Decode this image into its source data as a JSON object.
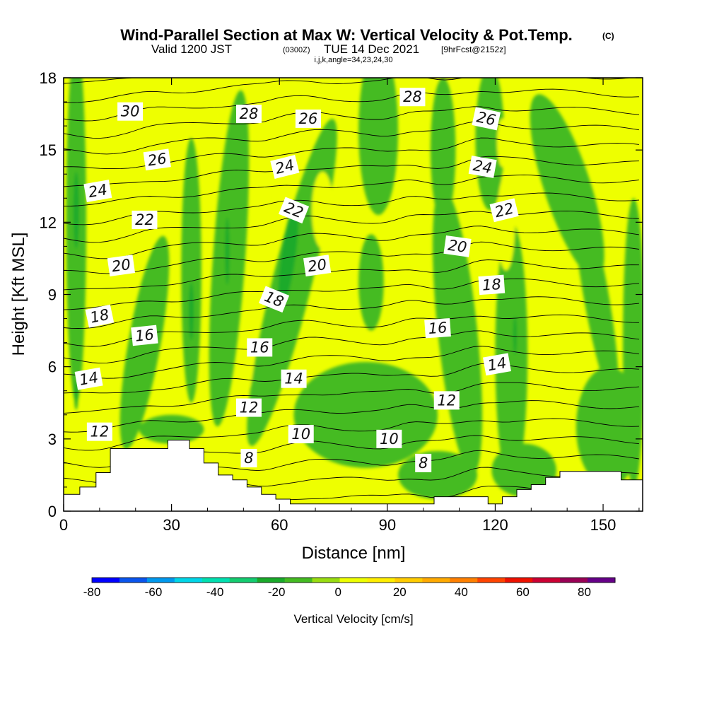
{
  "chart_data": {
    "type": "heatmap",
    "title": "Wind-Parallel Section at Max W: Vertical Velocity & Pot.Temp.",
    "title_mark": "(C)",
    "subtitle_prefix": "Valid 1200 JST",
    "subtitle_utc": "(0300Z)",
    "subtitle_date": "TUE 14 Dec 2021",
    "subtitle_fcst": "[9hrFcst@2152z]",
    "subtitle2": "i,j,k,angle=34,23,24,30",
    "xlabel": "Distance [nm]",
    "ylabel": "Height [Kft MSL]",
    "xlim": [
      0,
      161
    ],
    "ylim": [
      0,
      18
    ],
    "x_ticks": [
      0,
      30,
      60,
      90,
      120,
      150
    ],
    "y_ticks": [
      0,
      3,
      6,
      9,
      12,
      15,
      18
    ],
    "colorbar": {
      "label": "Vertical Velocity [cm/s]",
      "range": [
        -80,
        90
      ],
      "step": 10,
      "tick_values": [
        -80,
        -60,
        -40,
        -20,
        0,
        20,
        40,
        60,
        80
      ],
      "tick_labels": [
        "-80",
        "-60",
        "-40",
        "-20",
        "0",
        "20",
        "40",
        "60",
        "80"
      ],
      "colors": [
        "#0000ff",
        "#0a55ee",
        "#0099ee",
        "#00d6e8",
        "#00e0b0",
        "#14cc70",
        "#1aaa2a",
        "#44bb22",
        "#99dd11",
        "#eeff00",
        "#ffee00",
        "#ffcc00",
        "#ffaa00",
        "#ff8000",
        "#ff4400",
        "#ee1100",
        "#cc0033",
        "#990055",
        "#660088"
      ]
    },
    "terrain_kft": [
      [
        0,
        0.7
      ],
      [
        4.5,
        0.7
      ],
      [
        4.5,
        1.0
      ],
      [
        9,
        1.0
      ],
      [
        9,
        1.6
      ],
      [
        13,
        1.6
      ],
      [
        13,
        2.6
      ],
      [
        29,
        2.6
      ],
      [
        29,
        2.95
      ],
      [
        35,
        2.95
      ],
      [
        35,
        2.6
      ],
      [
        39,
        2.6
      ],
      [
        39,
        2.0
      ],
      [
        43,
        2.0
      ],
      [
        43,
        1.5
      ],
      [
        47,
        1.5
      ],
      [
        47,
        1.3
      ],
      [
        51,
        1.3
      ],
      [
        51,
        1.0
      ],
      [
        55,
        1.0
      ],
      [
        55,
        0.7
      ],
      [
        59,
        0.7
      ],
      [
        59,
        0.5
      ],
      [
        63,
        0.5
      ],
      [
        63,
        0.3
      ],
      [
        103,
        0.3
      ],
      [
        103,
        0.6
      ],
      [
        118,
        0.6
      ],
      [
        118,
        0.3
      ],
      [
        122,
        0.3
      ],
      [
        122,
        0.6
      ],
      [
        126,
        0.6
      ],
      [
        126,
        0.9
      ],
      [
        130,
        0.9
      ],
      [
        130,
        1.1
      ],
      [
        134,
        1.1
      ],
      [
        134,
        1.4
      ],
      [
        138,
        1.4
      ],
      [
        138,
        1.65
      ],
      [
        155,
        1.65
      ],
      [
        155,
        1.3
      ],
      [
        161,
        1.3
      ]
    ],
    "theta_contour_labels": [
      {
        "value": "30",
        "x": 18.5,
        "y": 16.6,
        "angle": 0
      },
      {
        "value": "28",
        "x": 51.5,
        "y": 16.5,
        "angle": 0
      },
      {
        "value": "26",
        "x": 68,
        "y": 16.3,
        "angle": 0
      },
      {
        "value": "28",
        "x": 97,
        "y": 17.2,
        "angle": 0
      },
      {
        "value": "26",
        "x": 117.5,
        "y": 16.3,
        "angle": 12
      },
      {
        "value": "26",
        "x": 26,
        "y": 14.6,
        "angle": -8
      },
      {
        "value": "24",
        "x": 61.5,
        "y": 14.3,
        "angle": -14
      },
      {
        "value": "24",
        "x": 116.5,
        "y": 14.3,
        "angle": 10
      },
      {
        "value": "24",
        "x": 9.5,
        "y": 13.3,
        "angle": -10
      },
      {
        "value": "22",
        "x": 22.5,
        "y": 12.1,
        "angle": 0
      },
      {
        "value": "22",
        "x": 64,
        "y": 12.5,
        "angle": 22
      },
      {
        "value": "22",
        "x": 122.5,
        "y": 12.5,
        "angle": -14
      },
      {
        "value": "20",
        "x": 16,
        "y": 10.2,
        "angle": -8
      },
      {
        "value": "20",
        "x": 70.5,
        "y": 10.2,
        "angle": -8
      },
      {
        "value": "20",
        "x": 109.5,
        "y": 11.0,
        "angle": 8
      },
      {
        "value": "18",
        "x": 58.5,
        "y": 8.8,
        "angle": 22
      },
      {
        "value": "18",
        "x": 119,
        "y": 9.4,
        "angle": -4
      },
      {
        "value": "18",
        "x": 10,
        "y": 8.1,
        "angle": -12
      },
      {
        "value": "16",
        "x": 22.5,
        "y": 7.3,
        "angle": -6
      },
      {
        "value": "16",
        "x": 54.5,
        "y": 6.8,
        "angle": 0
      },
      {
        "value": "16",
        "x": 104,
        "y": 7.6,
        "angle": -4
      },
      {
        "value": "14",
        "x": 7,
        "y": 5.5,
        "angle": -10
      },
      {
        "value": "14",
        "x": 64,
        "y": 5.5,
        "angle": 0
      },
      {
        "value": "14",
        "x": 120.5,
        "y": 6.1,
        "angle": -10
      },
      {
        "value": "12",
        "x": 51.5,
        "y": 4.3,
        "angle": 0
      },
      {
        "value": "12",
        "x": 106.5,
        "y": 4.6,
        "angle": 0
      },
      {
        "value": "12",
        "x": 10,
        "y": 3.3,
        "angle": 0
      },
      {
        "value": "10",
        "x": 66,
        "y": 3.2,
        "angle": 0
      },
      {
        "value": "10",
        "x": 90.5,
        "y": 3.0,
        "angle": 0
      },
      {
        "value": "8",
        "x": 51.5,
        "y": 2.2,
        "angle": 0
      },
      {
        "value": "8",
        "x": 100,
        "y": 2.0,
        "angle": 0
      }
    ],
    "w_features": [
      {
        "w": -5,
        "x": 3.5,
        "y": 12.0,
        "rx": 2.8,
        "ry": 7.5,
        "tilt": 0
      },
      {
        "w": -5,
        "x": 22.5,
        "y": 7.0,
        "rx": 4.5,
        "ry": 4.5,
        "tilt": 10
      },
      {
        "w": -5,
        "x": 35.5,
        "y": 10.0,
        "rx": 2.8,
        "ry": 5.5,
        "tilt": 0
      },
      {
        "w": -5,
        "x": 46,
        "y": 10.5,
        "rx": 4.5,
        "ry": 7.0,
        "tilt": 4
      },
      {
        "w": -5,
        "x": 63.5,
        "y": 9.5,
        "rx": 5.5,
        "ry": 7.0,
        "tilt": 14
      },
      {
        "w": -5,
        "x": 84,
        "y": 4.0,
        "rx": 20,
        "ry": 2.2,
        "tilt": 0
      },
      {
        "w": -5,
        "x": 85.5,
        "y": 9.5,
        "rx": 3.5,
        "ry": 2.0,
        "tilt": 0
      },
      {
        "w": -5,
        "x": 87.5,
        "y": 15.8,
        "rx": 5.5,
        "ry": 3.5,
        "tilt": 0
      },
      {
        "w": -5,
        "x": 109.5,
        "y": 7.5,
        "rx": 5.5,
        "ry": 6.0,
        "tilt": -6
      },
      {
        "w": -5,
        "x": 105.5,
        "y": 15.0,
        "rx": 3.5,
        "ry": 3.0,
        "tilt": 0
      },
      {
        "w": -5,
        "x": 118.5,
        "y": 15.5,
        "rx": 4.0,
        "ry": 3.0,
        "tilt": 0
      },
      {
        "w": -5,
        "x": 124.5,
        "y": 6.5,
        "rx": 4.5,
        "ry": 5.5,
        "tilt": 0
      },
      {
        "w": -5,
        "x": 140,
        "y": 13.5,
        "rx": 6.5,
        "ry": 4.0,
        "tilt": -18
      },
      {
        "w": -5,
        "x": 148,
        "y": 9.0,
        "rx": 3.5,
        "ry": 4.5,
        "tilt": -10
      },
      {
        "w": -5,
        "x": 151.5,
        "y": 3.5,
        "rx": 9.0,
        "ry": 2.5,
        "tilt": 0
      },
      {
        "w": -5,
        "x": 158.5,
        "y": 7.0,
        "rx": 3.0,
        "ry": 6.0,
        "tilt": 0
      },
      {
        "w": -5,
        "x": 104,
        "y": 1.5,
        "rx": 11,
        "ry": 1.0,
        "tilt": 0
      },
      {
        "w": -5,
        "x": 128,
        "y": 1.7,
        "rx": 9,
        "ry": 1.1,
        "tilt": 0
      },
      {
        "w": -5,
        "x": 30,
        "y": 3.4,
        "rx": 9,
        "ry": 0.6,
        "tilt": 0
      },
      {
        "w": -15,
        "x": 3.5,
        "y": 12.5,
        "rx": 0.8,
        "ry": 1.6,
        "tilt": 0
      },
      {
        "w": -15,
        "x": 3.5,
        "y": 4.8,
        "rx": 0.5,
        "ry": 0.6,
        "tilt": 0
      },
      {
        "w": -15,
        "x": 35.5,
        "y": 8.3,
        "rx": 0.7,
        "ry": 1.2,
        "tilt": 0
      },
      {
        "w": -15,
        "x": 45.5,
        "y": 10.8,
        "rx": 0.6,
        "ry": 1.4,
        "tilt": 0
      },
      {
        "w": -15,
        "x": 62.5,
        "y": 10.6,
        "rx": 2.0,
        "ry": 2.2,
        "tilt": 8
      },
      {
        "w": -15,
        "x": 125.5,
        "y": 7.3,
        "rx": 0.5,
        "ry": 0.8,
        "tilt": 0
      },
      {
        "w": 15,
        "x": 39,
        "y": 16.5,
        "rx": 4.0,
        "ry": 1.5,
        "tilt": -10
      },
      {
        "w": 15,
        "x": 56,
        "y": 14.5,
        "rx": 3.0,
        "ry": 2.5,
        "tilt": 6
      },
      {
        "w": 15,
        "x": 61.5,
        "y": 16.8,
        "rx": 2.0,
        "ry": 1.3,
        "tilt": 0
      },
      {
        "w": 15,
        "x": 72,
        "y": 12.5,
        "rx": 3.0,
        "ry": 1.6,
        "tilt": 0
      },
      {
        "w": 15,
        "x": 69.5,
        "y": 7.0,
        "rx": 2.5,
        "ry": 1.2,
        "tilt": 0
      },
      {
        "w": 15,
        "x": 51.5,
        "y": 6.2,
        "rx": 1.2,
        "ry": 1.0,
        "tilt": 0
      },
      {
        "w": 15,
        "x": 91.5,
        "y": 10.5,
        "rx": 1.5,
        "ry": 1.0,
        "tilt": 0
      },
      {
        "w": 15,
        "x": 123,
        "y": 12.0,
        "rx": 2.5,
        "ry": 2.0,
        "tilt": 0
      },
      {
        "w": 15,
        "x": 122,
        "y": 15.3,
        "rx": 1.5,
        "ry": 1.0,
        "tilt": 0
      }
    ]
  }
}
